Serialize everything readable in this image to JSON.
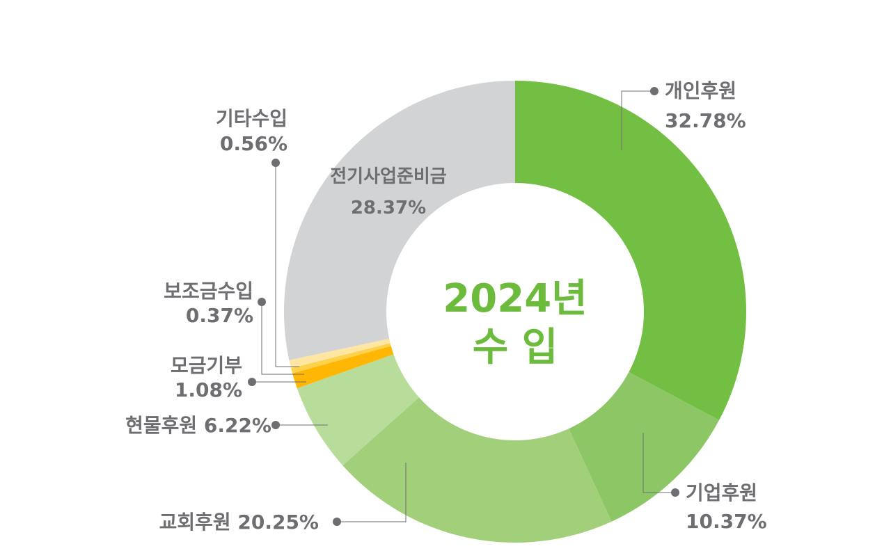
{
  "chart_data": {
    "type": "pie",
    "center_text": [
      "2024년",
      "수 입"
    ],
    "slices": [
      {
        "name": "개인후원",
        "value": 32.78,
        "label_pct": "32.78%",
        "color": "#72bf44"
      },
      {
        "name": "기업후원",
        "value": 10.37,
        "label_pct": "10.37%",
        "color": "#8dc665"
      },
      {
        "name": "교회후원",
        "value": 20.25,
        "label_pct": "20.25%",
        "color": "#a2cf79"
      },
      {
        "name": "현물후원",
        "value": 6.22,
        "label_pct": "6.22%",
        "color": "#b8dc9a"
      },
      {
        "name": "모금기부",
        "value": 1.08,
        "label_pct": "1.08%",
        "color": "#ffb703"
      },
      {
        "name": "보조금수입",
        "value": 0.37,
        "label_pct": "0.37%",
        "color": "#ffd24d"
      },
      {
        "name": "기타수입",
        "value": 0.56,
        "label_pct": "0.56%",
        "color": "#ffe6a3"
      },
      {
        "name": "전기사업준비금",
        "value": 28.37,
        "label_pct": "28.37%",
        "color": "#d1d3d4"
      }
    ],
    "leader_color": "#6d6e71"
  }
}
